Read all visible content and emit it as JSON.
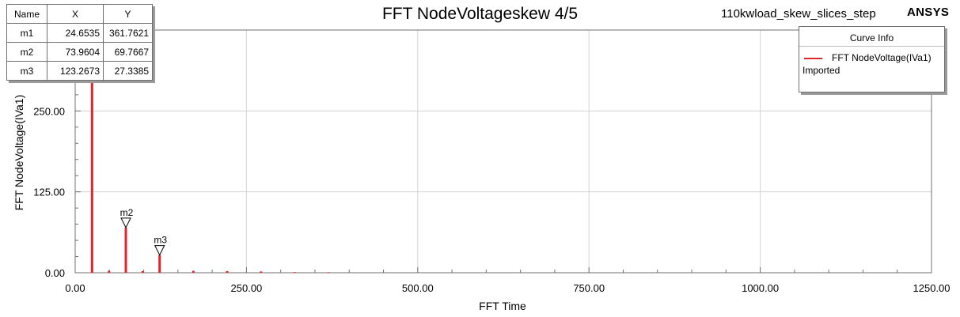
{
  "title": "FFT NodeVoltageskew 4/5",
  "project": "110kwload_skew_slices_step",
  "brand": "ANSYS",
  "marker_table": {
    "headers": [
      "Name",
      "X",
      "Y"
    ],
    "rows": [
      [
        "m1",
        "24.6535",
        "361.7621"
      ],
      [
        "m2",
        "73.9604",
        "69.7667"
      ],
      [
        "m3",
        "123.2673",
        "27.3385"
      ]
    ]
  },
  "legend": {
    "title": "Curve Info",
    "entries": [
      {
        "label": "FFT NodeVoltage(IVa1)",
        "sub": "Imported",
        "color": "#e3242b"
      }
    ]
  },
  "chart_data": {
    "type": "bar",
    "title": "FFT NodeVoltageskew 4/5",
    "xlabel": "FFT Time",
    "ylabel": "FFT NodeVoltage(IVa1)",
    "xlim": [
      0,
      1250
    ],
    "ylim": [
      0,
      375
    ],
    "x_ticks": [
      "0.00",
      "250.00",
      "500.00",
      "750.00",
      "1000.00",
      "1250.00"
    ],
    "x_tick_values": [
      0,
      250,
      500,
      750,
      1000,
      1250
    ],
    "y_ticks": [
      "0.00",
      "125.00",
      "250.00"
    ],
    "y_tick_values": [
      0,
      125,
      250
    ],
    "grid": true,
    "legend_position": "top-right",
    "series": [
      {
        "name": "FFT NodeVoltage(IVa1)",
        "color": "#e3242b",
        "x": [
          24.65,
          49.31,
          73.96,
          98.61,
          123.27,
          172.58,
          221.88,
          271.19,
          320.5,
          369.81
        ],
        "values": [
          361.76,
          3.0,
          69.77,
          2.5,
          27.34,
          3.0,
          2.5,
          2.0,
          1.0,
          0.8
        ]
      }
    ],
    "markers": [
      {
        "name": "m2",
        "x": 73.9604,
        "y": 69.7667
      },
      {
        "name": "m3",
        "x": 123.2673,
        "y": 27.3385
      }
    ]
  }
}
